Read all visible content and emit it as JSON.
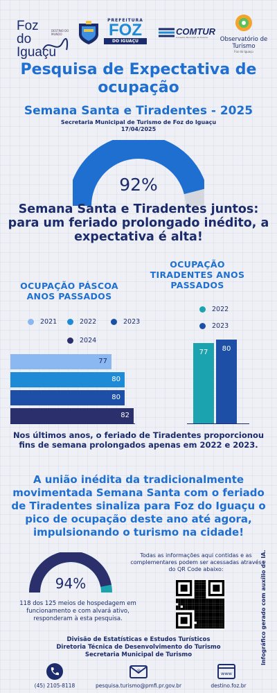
{
  "logos": {
    "foz_name": "Foz do Iguaçu",
    "foz_tag": "DESTINO DO MUNDO",
    "prefeitura_top": "PREFEITURA",
    "prefeitura_main": "FOZ",
    "prefeitura_bottom": "DO IGUAÇU",
    "comtur": "COMTUR",
    "comtur_sub": "Conselho Municipal de Turismo",
    "observatorio": "Observatório de Turismo",
    "observatorio_sub": "Foz do Iguaçu"
  },
  "header": {
    "title": "Pesquisa de Expectativa de ocupação",
    "subtitle": "Semana Santa e Tiradentes - 2025",
    "secretaria": "Secretaria Municipal de Turismo de Foz do Iguaçu",
    "date": "17/04/2025"
  },
  "main_gauge": {
    "value": 92,
    "label": "92%",
    "color": "#1f6fd1"
  },
  "headline": "Semana Santa e Tiradentes juntos: para um feriado prolongado inédito, a expectativa é alta!",
  "chart_data": [
    {
      "type": "bar",
      "title": "OCUPAÇÃO PÁSCOA ANOS PASSADOS",
      "orientation": "horizontal",
      "categories": [
        "2021",
        "2022",
        "2023",
        "2024"
      ],
      "values": [
        77,
        80,
        80,
        82
      ],
      "value_labels": [
        "77",
        "80",
        "80",
        "82"
      ],
      "colors": [
        "#8bb8f0",
        "#1f8ad6",
        "#1d4fa6",
        "#2b2f6b"
      ],
      "legend_position": "top"
    },
    {
      "type": "bar",
      "title": "OCUPAÇÃO TIRADENTES ANOS PASSADOS",
      "orientation": "vertical",
      "categories": [
        "2022",
        "2023"
      ],
      "values": [
        77,
        80
      ],
      "value_labels": [
        "77",
        "80"
      ],
      "colors": [
        "#1ba3b0",
        "#1d4fa6"
      ],
      "legend_position": "top"
    }
  ],
  "note": "Nos últimos anos, o feriado de Tiradentes proporcionou fins de semana prolongados apenas em 2022 e 2023.",
  "union": "A união inédita da tradicionalmente movimentada Semana Santa com o feriado de Tiradentes sinaliza para Foz do Iguaçu o pico de ocupação deste ano até agora, impulsionando o turismo na cidade!",
  "info": "Todas as informações aqui contidas e as complementares podem ser acessadas através do QR Code abaixo:",
  "small_gauge": {
    "value": 94,
    "label": "94%",
    "color": "#2b2f6b",
    "accent": "#1ba3b0"
  },
  "respondents": "118 dos 125 meios de hospedagem em funcionamento e com alvará ativo, responderam à esta pesquisa.",
  "credits": [
    "Divisão de Estatísticas e Estudos Turísticos",
    "Diretoria Técnica de Desenvolvimento do Turismo",
    "Secretaria Municipal de Turismo"
  ],
  "side_note": "Infográfico gerado com auxílio de IA.",
  "footer": {
    "phone": "(45) 2105-8118",
    "email": "pesquisa.turismo@pmfi.pr.gov.br",
    "site": "destino.foz.br",
    "site_icon_text": "www"
  }
}
